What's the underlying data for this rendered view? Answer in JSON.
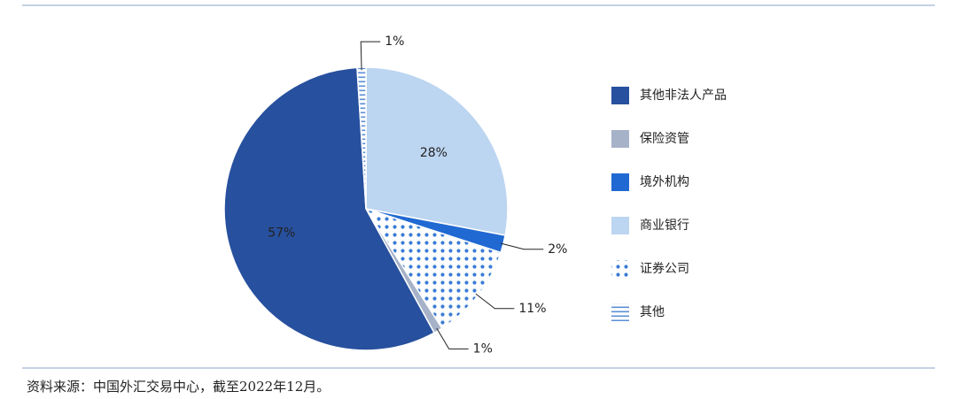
{
  "chart_data": {
    "type": "pie",
    "categories": [
      "其他非法人产品",
      "保险资管",
      "境外机构",
      "商业银行",
      "证券公司",
      "其他"
    ],
    "values": [
      57,
      1,
      2,
      28,
      11,
      1
    ],
    "value_labels": [
      "57%",
      "1%",
      "2%",
      "28%",
      "11%",
      "1%"
    ],
    "colors": [
      "#27509e",
      "#a6b2c8",
      "#2169d2",
      "#bcd5f0",
      "#3b7bd4",
      "#5b8ed6"
    ],
    "legend": "right"
  },
  "source": "资料来源：中国外汇交易中心，截至2022年12月。"
}
